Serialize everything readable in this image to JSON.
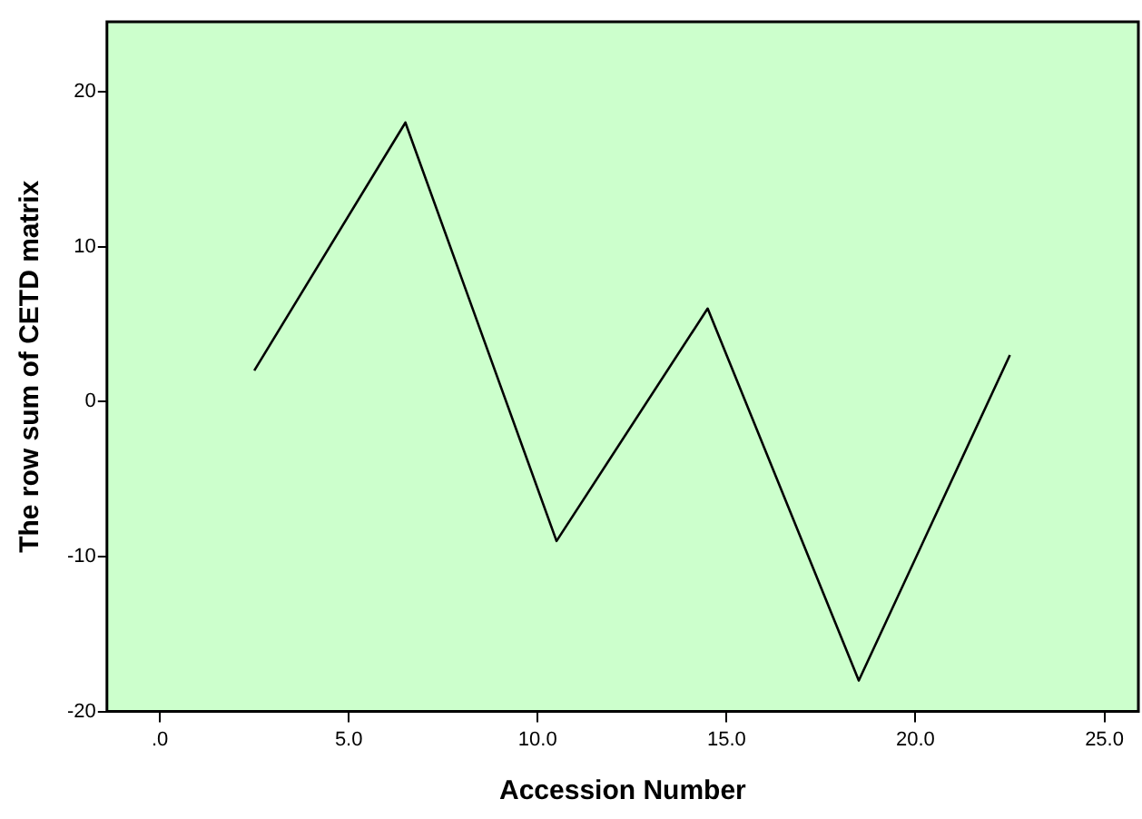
{
  "chart_data": {
    "type": "line",
    "xlabel": "Accession Number",
    "ylabel": "The row sum of CETD matrix",
    "x": [
      2.5,
      6.5,
      10.5,
      14.5,
      18.5,
      22.5
    ],
    "series": [
      {
        "color": "#000000",
        "values": [
          2,
          18,
          -9,
          6,
          -18,
          3
        ]
      }
    ],
    "xlim": [
      -1.4,
      25.9
    ],
    "xticks": [
      {
        "value": 0,
        "label": ".0"
      },
      {
        "value": 5,
        "label": "5.0"
      },
      {
        "value": 10,
        "label": "10.0"
      },
      {
        "value": 15,
        "label": "15.0"
      },
      {
        "value": 20,
        "label": "20.0"
      },
      {
        "value": 25,
        "label": "25.0"
      }
    ],
    "ylim": [
      -20,
      24.5
    ],
    "yticks": [
      -20,
      -10,
      0,
      10,
      20
    ],
    "grid": false,
    "legend": false,
    "marker": "none",
    "line_style": "solid"
  }
}
